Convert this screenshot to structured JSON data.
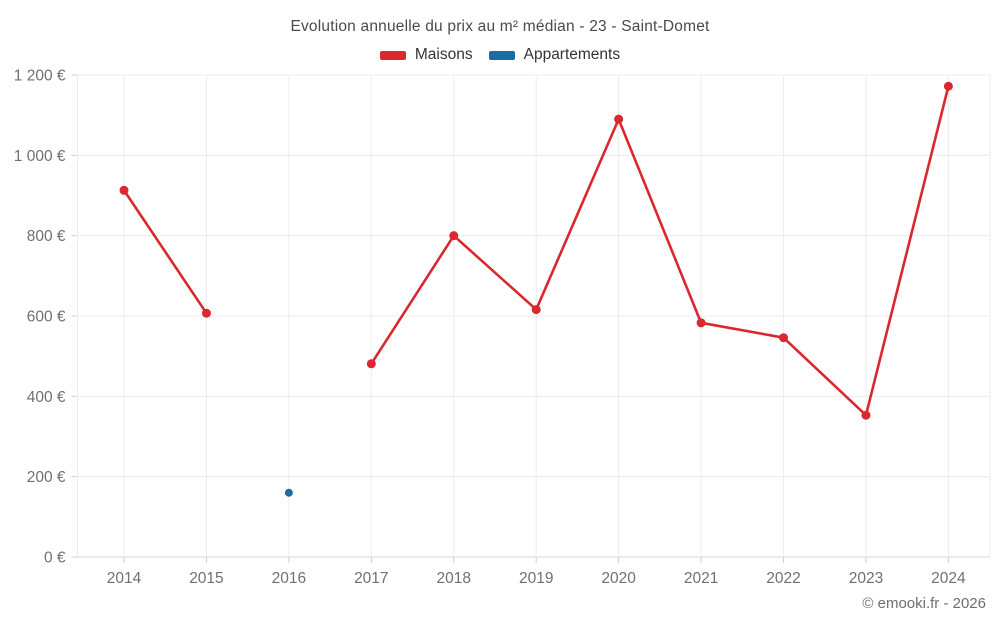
{
  "header": {
    "title": "Evolution annuelle du prix au m² médian - 23 - Saint-Domet"
  },
  "legend": {
    "items": [
      {
        "label": "Maisons",
        "color": "#d9282e"
      },
      {
        "label": "Appartements",
        "color": "#1b6d9f"
      }
    ]
  },
  "footer": {
    "copyright": "© emooki.fr - 2026"
  },
  "chart_data": {
    "type": "line",
    "title": "Evolution annuelle du prix au m² médian - 23 - Saint-Domet",
    "categories": [
      "2014",
      "2015",
      "2016",
      "2017",
      "2018",
      "2019",
      "2020",
      "2021",
      "2022",
      "2023",
      "2024"
    ],
    "series": [
      {
        "name": "Maisons",
        "color": "#d9282e",
        "marker_radius": 4.5,
        "values": [
          913,
          607,
          null,
          481,
          800,
          616,
          1090,
          583,
          546,
          353,
          1172
        ]
      },
      {
        "name": "Appartements",
        "color": "#1b6d9f",
        "marker_radius": 4,
        "values": [
          null,
          null,
          160,
          null,
          null,
          null,
          null,
          null,
          null,
          null,
          null
        ]
      }
    ],
    "ylabel": "",
    "xlabel": "",
    "ylim": [
      0,
      1200
    ],
    "ytick_step": 200,
    "ytick_labels": [
      "0 €",
      "200 €",
      "400 €",
      "600 €",
      "800 €",
      "1 000 €",
      "1 200 €"
    ],
    "grid": true,
    "legend_position": "top",
    "colors": {
      "grid_line": "#ececec",
      "axis_line": "#d6d6d6",
      "tick": "#cfcfcf",
      "axis_label": "#707070"
    }
  }
}
